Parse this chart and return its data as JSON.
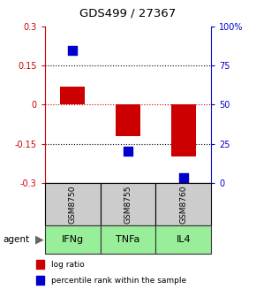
{
  "title": "GDS499 / 27367",
  "samples": [
    "GSM8750",
    "GSM8755",
    "GSM8760"
  ],
  "agents": [
    "IFNg",
    "TNFa",
    "IL4"
  ],
  "log_ratios": [
    0.07,
    -0.12,
    -0.2
  ],
  "percentile_ranks": [
    85,
    20,
    3
  ],
  "left_ylim": [
    -0.3,
    0.3
  ],
  "right_ylim": [
    0,
    100
  ],
  "left_yticks": [
    -0.3,
    -0.15,
    0,
    0.15,
    0.3
  ],
  "right_yticks": [
    0,
    25,
    50,
    75,
    100
  ],
  "right_yticklabels": [
    "0",
    "25",
    "50",
    "75",
    "100%"
  ],
  "dotted_lines": [
    0.15,
    -0.15
  ],
  "bar_color": "#cc0000",
  "dot_color": "#0000cc",
  "bar_width": 0.45,
  "dot_size": 45,
  "sample_bg": "#cccccc",
  "agent_row_color": "#99ee99",
  "agent_border_color": "#333333",
  "legend_items": [
    "log ratio",
    "percentile rank within the sample"
  ]
}
